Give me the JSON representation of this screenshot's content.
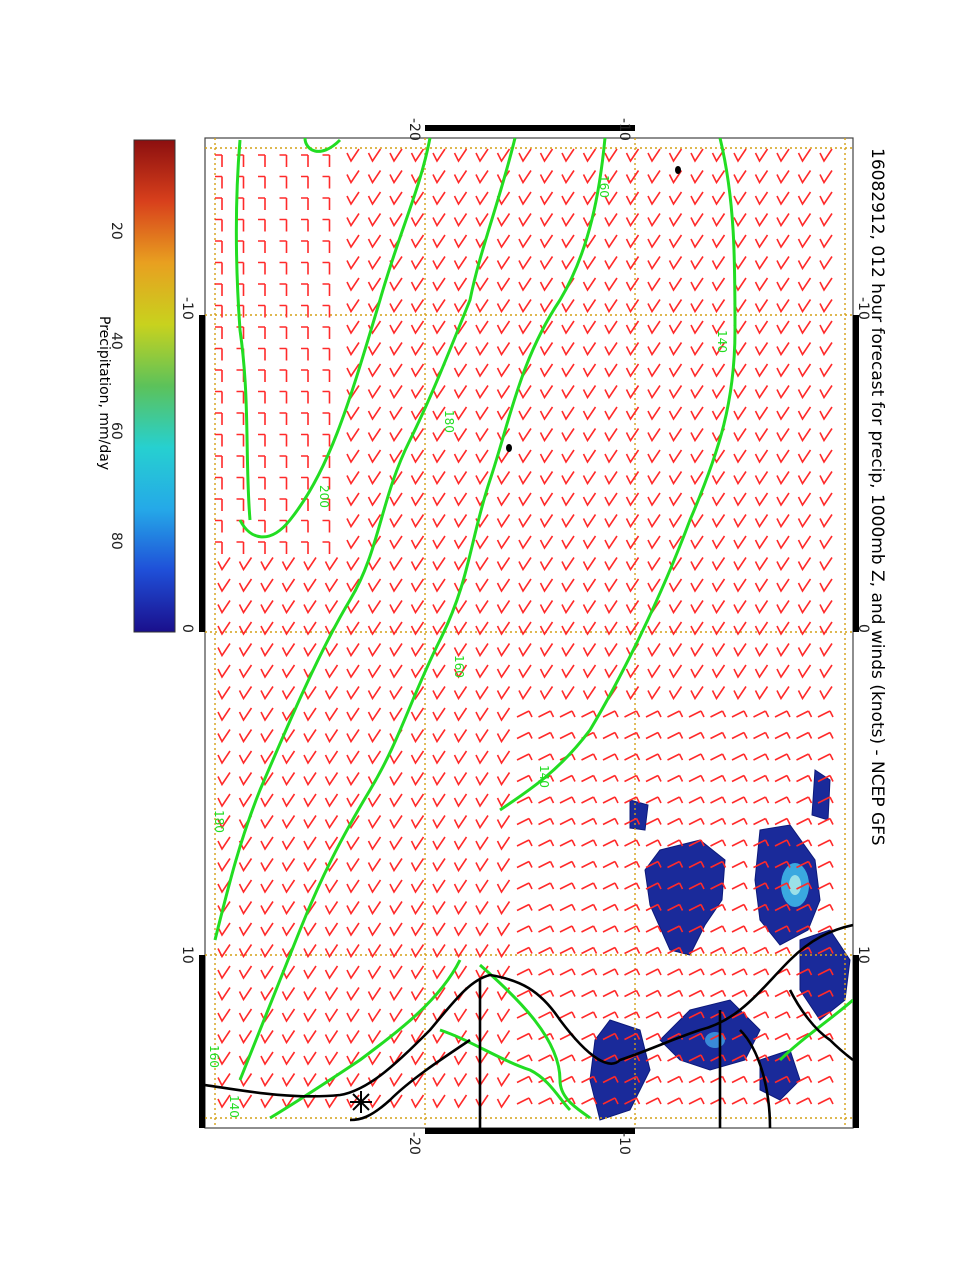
{
  "title": "16082912, 012 hour forecast for precip, 1000mb Z, and winds (knots) - NCEP GFS",
  "colorbar": {
    "label": "Precipitation, mm/day",
    "ticks": [
      "20",
      "40",
      "60",
      "80"
    ],
    "colors": [
      "#1a0f8c",
      "#1f4fd8",
      "#25a9e8",
      "#26d0d0",
      "#5cc25a",
      "#c8d21e",
      "#e8a020",
      "#d8401c",
      "#8c0f0f"
    ]
  },
  "map": {
    "lat_labels_top": [
      "-20",
      "-10"
    ],
    "lat_labels_bottom": [
      "-20",
      "-10"
    ],
    "lon_labels_left": [
      "-10",
      "0",
      "10"
    ],
    "lon_labels_right": [
      "-10",
      "0",
      "10"
    ],
    "contour_color": "#22dd22",
    "barb_color": "#ff2a2a",
    "grid_color": "#d4a017",
    "coast_color": "#000000",
    "precip_color": "#1a2a9a",
    "contour_labels": [
      "160",
      "140",
      "180",
      "200",
      "160",
      "140",
      "180",
      "160",
      "140"
    ]
  }
}
